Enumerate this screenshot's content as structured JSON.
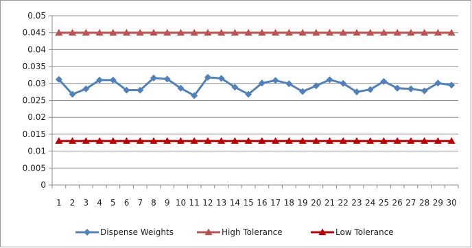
{
  "chart_data": {
    "type": "line",
    "title": "",
    "xlabel": "",
    "ylabel": "",
    "x": [
      1,
      2,
      3,
      4,
      5,
      6,
      7,
      8,
      9,
      10,
      11,
      12,
      13,
      14,
      15,
      16,
      17,
      18,
      19,
      20,
      21,
      22,
      23,
      24,
      25,
      26,
      27,
      28,
      29,
      30
    ],
    "ylim": [
      0,
      0.05
    ],
    "yticks": [
      "0",
      "0.005",
      "0.01",
      "0.015",
      "0.02",
      "0.025",
      "0.03",
      "0.035",
      "0.04",
      "0.045",
      "0.05"
    ],
    "grid": true,
    "legend_position": "bottom",
    "series": [
      {
        "name": "Dispense Weights",
        "color": "#4F81BD",
        "marker": "diamond",
        "values": [
          0.0312,
          0.0268,
          0.0284,
          0.031,
          0.031,
          0.028,
          0.028,
          0.0316,
          0.0313,
          0.0286,
          0.0264,
          0.0318,
          0.0315,
          0.0289,
          0.0268,
          0.0301,
          0.0309,
          0.0299,
          0.0276,
          0.0293,
          0.0311,
          0.03,
          0.0275,
          0.0282,
          0.0306,
          0.0286,
          0.0284,
          0.0278,
          0.0301,
          0.0295
        ]
      },
      {
        "name": "High Tolerance",
        "color": "#C0504D",
        "marker": "triangle",
        "values": [
          0.045,
          0.045,
          0.045,
          0.045,
          0.045,
          0.045,
          0.045,
          0.045,
          0.045,
          0.045,
          0.045,
          0.045,
          0.045,
          0.045,
          0.045,
          0.045,
          0.045,
          0.045,
          0.045,
          0.045,
          0.045,
          0.045,
          0.045,
          0.045,
          0.045,
          0.045,
          0.045,
          0.045,
          0.045,
          0.045
        ]
      },
      {
        "name": "Low Tolerance",
        "color": "#C00000",
        "marker": "triangle",
        "values": [
          0.013,
          0.013,
          0.013,
          0.013,
          0.013,
          0.013,
          0.013,
          0.013,
          0.013,
          0.013,
          0.013,
          0.013,
          0.013,
          0.013,
          0.013,
          0.013,
          0.013,
          0.013,
          0.013,
          0.013,
          0.013,
          0.013,
          0.013,
          0.013,
          0.013,
          0.013,
          0.013,
          0.013,
          0.013,
          0.013
        ]
      }
    ]
  }
}
